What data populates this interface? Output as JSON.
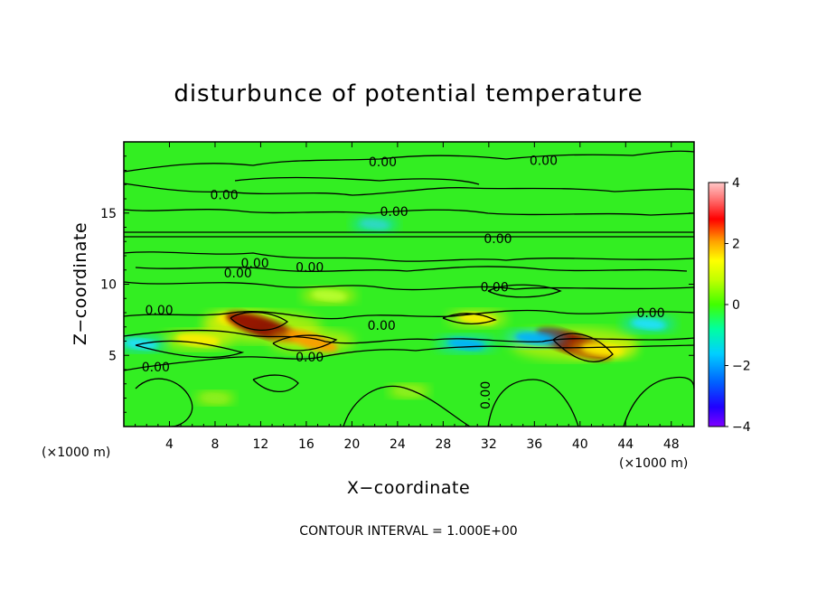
{
  "chart_data": {
    "type": "heatmap",
    "title": "disturbunce of potential temperature",
    "xlabel": "X−coordinate",
    "ylabel": "Z−coordinate",
    "x_unit": "(×1000 m)",
    "y_unit": "(×1000 m)",
    "xlim": [
      0,
      50
    ],
    "ylim": [
      0,
      20
    ],
    "x_ticks": [
      4,
      8,
      12,
      16,
      20,
      24,
      28,
      32,
      36,
      40,
      44,
      48
    ],
    "y_ticks": [
      5,
      10,
      15
    ],
    "colorbar": {
      "range": [
        -4,
        4
      ],
      "ticks": [
        4,
        2,
        0,
        -2,
        -4
      ],
      "colors": [
        "#7f00ff",
        "#0000ff",
        "#0080ff",
        "#00e5ff",
        "#00ff80",
        "#7fff00",
        "#c8ff00",
        "#ffff00",
        "#ffa500",
        "#ff0000",
        "#ff9090",
        "#ffd0d0"
      ]
    },
    "contour_labels": [
      {
        "text": "0.00",
        "x": 22.7,
        "y": 18.6
      },
      {
        "text": "0.00",
        "x": 36.8,
        "y": 18.7
      },
      {
        "text": "0.00",
        "x": 8.8,
        "y": 16.3
      },
      {
        "text": "0.00",
        "x": 23.7,
        "y": 15.1
      },
      {
        "text": "0.00",
        "x": 32.8,
        "y": 13.2
      },
      {
        "text": "0.00",
        "x": 11.5,
        "y": 11.5
      },
      {
        "text": "0.00",
        "x": 10.0,
        "y": 10.8
      },
      {
        "text": "0.00",
        "x": 16.3,
        "y": 11.2
      },
      {
        "text": "0.00",
        "x": 32.5,
        "y": 9.8
      },
      {
        "text": "0.00",
        "x": 3.1,
        "y": 8.2
      },
      {
        "text": "0.00",
        "x": 46.2,
        "y": 8.0
      },
      {
        "text": "0.00",
        "x": 22.6,
        "y": 7.1
      },
      {
        "text": "0.00",
        "x": 16.3,
        "y": 4.9
      },
      {
        "text": "0.00",
        "x": 2.8,
        "y": 4.2
      },
      {
        "text": "0.00",
        "x": 31.7,
        "y": 2.2
      }
    ],
    "anomalies": [
      {
        "x": 10.0,
        "y": 7.5,
        "value": 1.5
      },
      {
        "x": 12.1,
        "y": 7.0,
        "value": 3.5
      },
      {
        "x": 6.5,
        "y": 6.1,
        "value": 1.6
      },
      {
        "x": 16.5,
        "y": 6.0,
        "value": 2.2
      },
      {
        "x": 39.5,
        "y": 5.8,
        "value": 3.8
      },
      {
        "x": 42.0,
        "y": 5.4,
        "value": 1.5
      },
      {
        "x": 31.0,
        "y": 7.6,
        "value": 1.2
      },
      {
        "x": 18.0,
        "y": 9.2,
        "value": 1.0
      },
      {
        "x": 30.0,
        "y": 5.8,
        "value": -1.2
      },
      {
        "x": 36.0,
        "y": 6.2,
        "value": -1.3
      },
      {
        "x": 46.0,
        "y": 7.2,
        "value": -1.0
      },
      {
        "x": 1.5,
        "y": 5.8,
        "value": -0.9
      },
      {
        "x": 22.0,
        "y": 14.2,
        "value": -0.7
      },
      {
        "x": 25.0,
        "y": 2.5,
        "value": 0.5
      },
      {
        "x": 8.0,
        "y": 2.0,
        "value": 0.4
      }
    ],
    "note": "CONTOUR INTERVAL = 1.000E+00"
  }
}
